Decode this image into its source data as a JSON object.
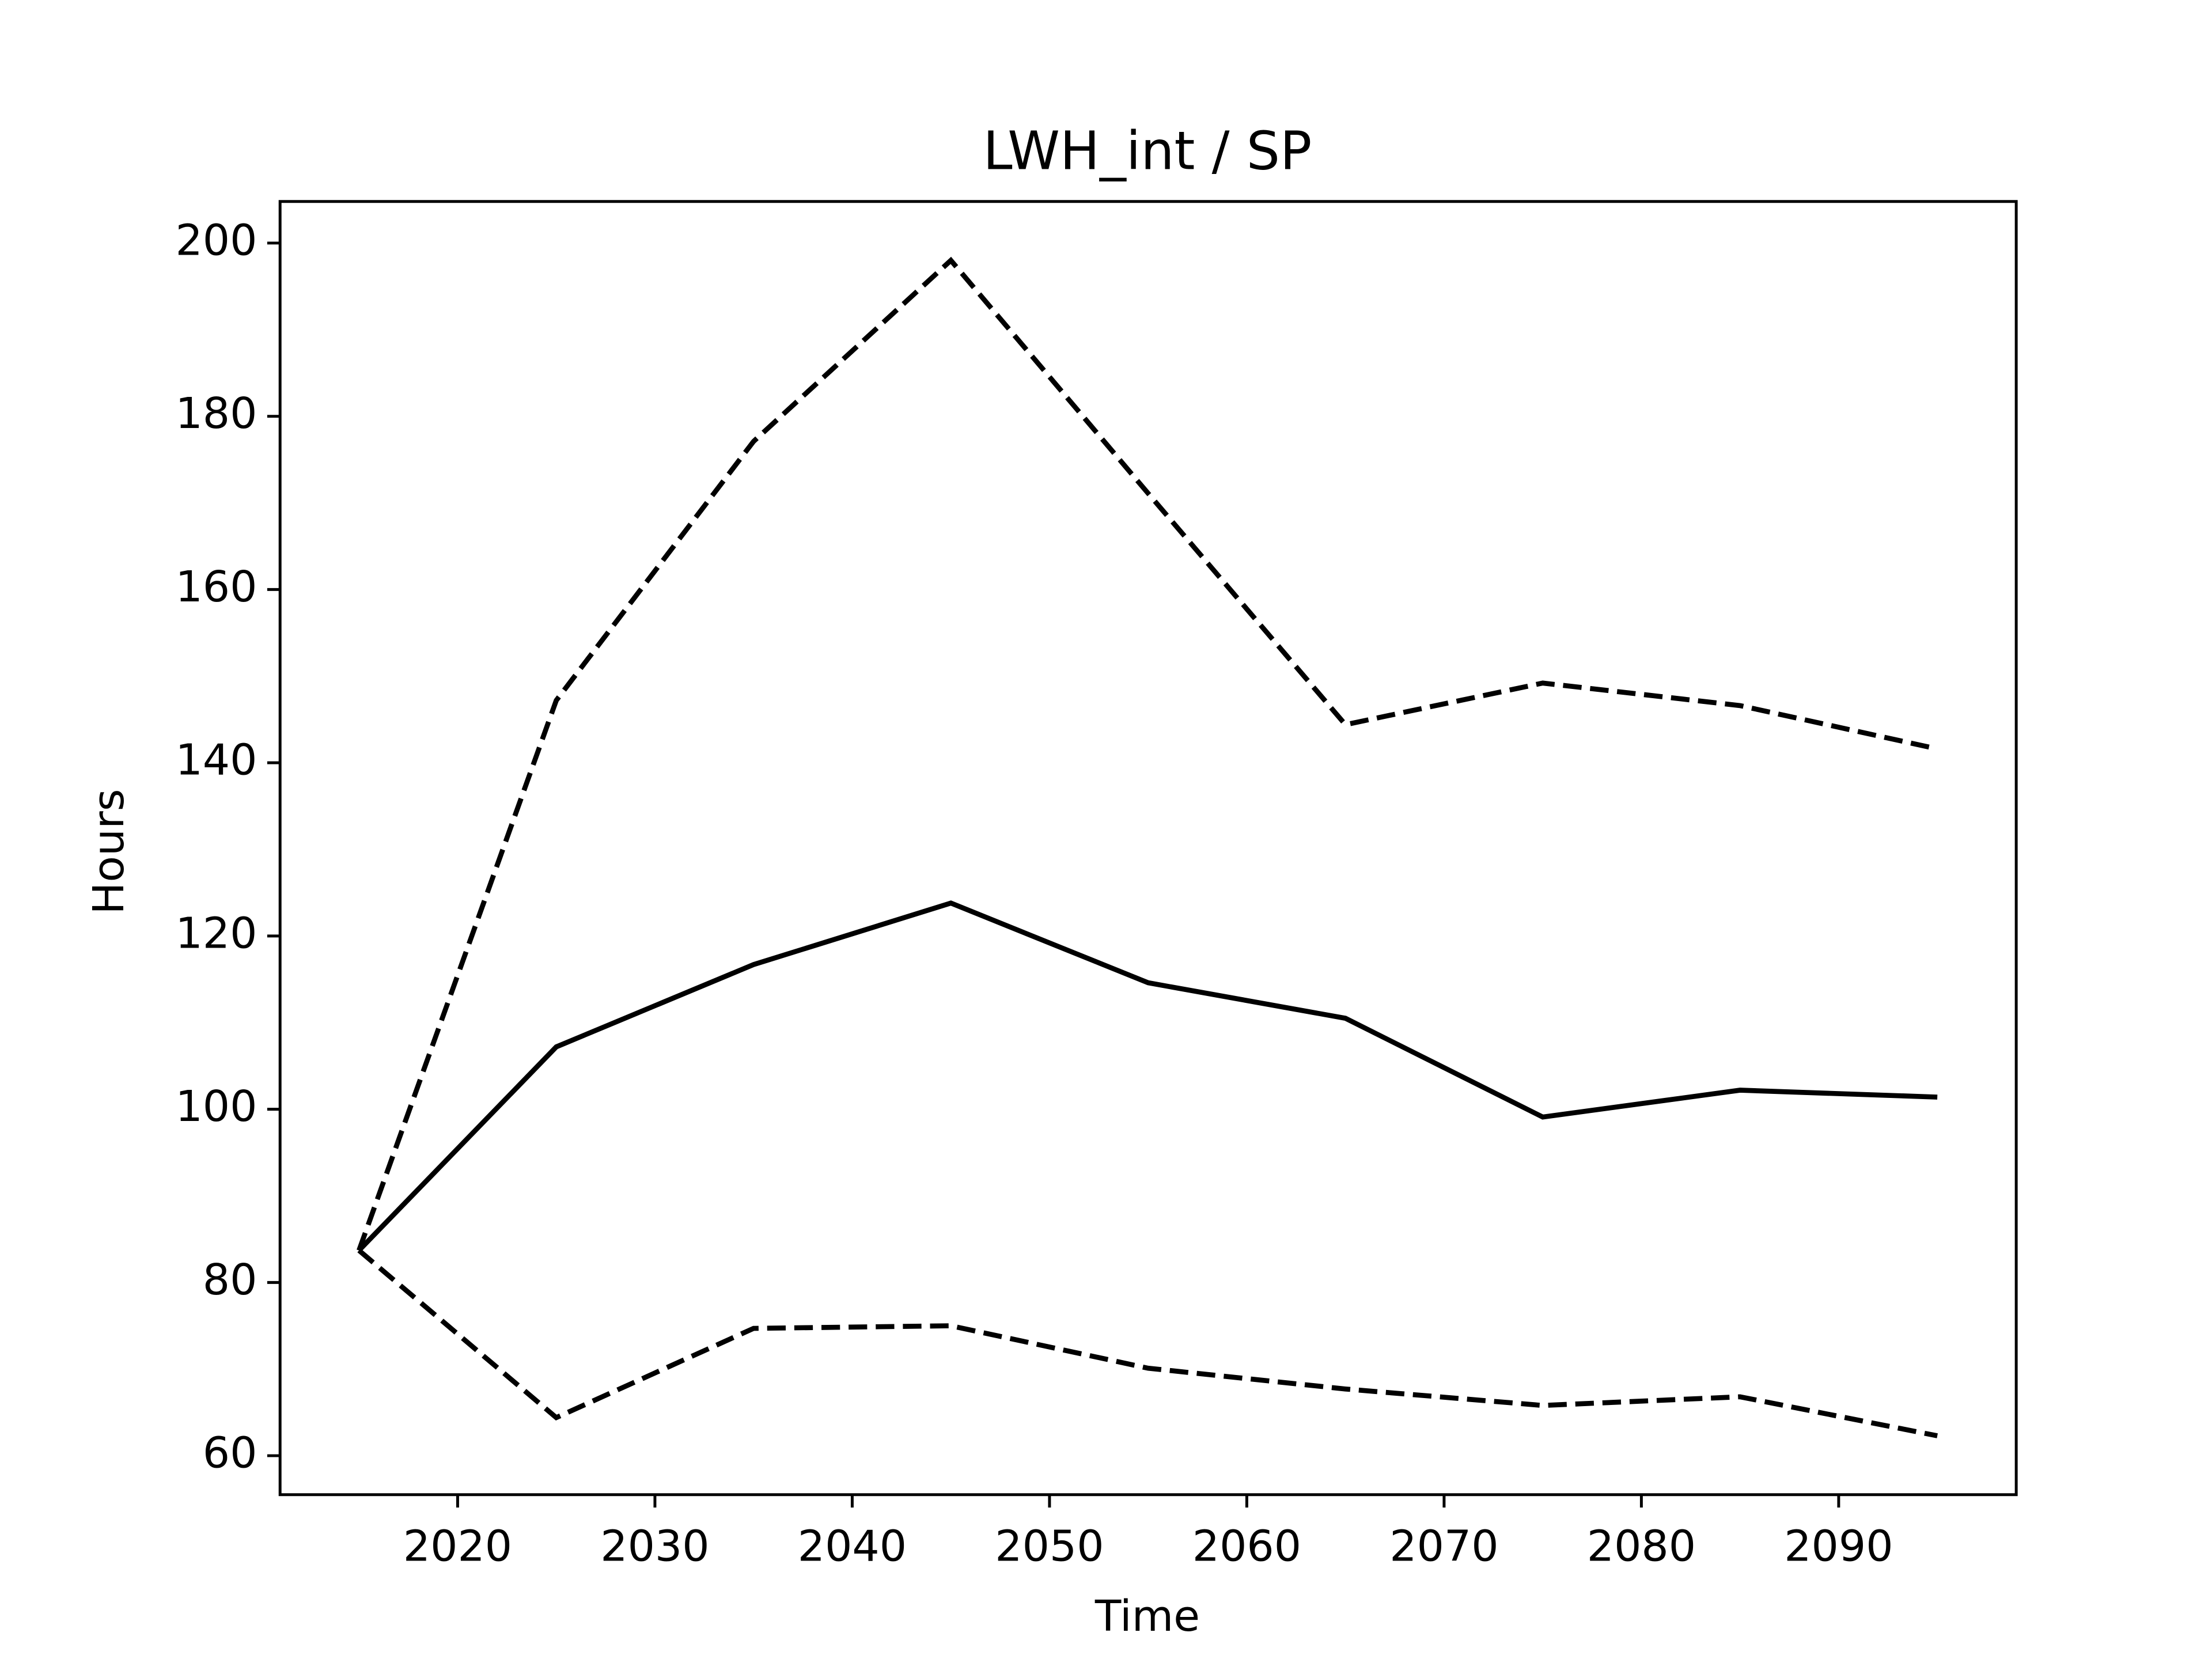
{
  "chart_data": {
    "type": "line",
    "title": "LWH_int / SP",
    "xlabel": "Time",
    "ylabel": "Hours",
    "x": [
      2015,
      2025,
      2035,
      2045,
      2055,
      2065,
      2075,
      2085,
      2095
    ],
    "series": [
      {
        "color": "#000000",
        "dash": "solid",
        "values": [
          83.7,
          107.2,
          116.7,
          123.8,
          114.6,
          110.5,
          99.1,
          102.2,
          101.4
        ]
      },
      {
        "color": "#000000",
        "dash": "dashed",
        "values": [
          83.7,
          147.2,
          177.1,
          198.0,
          171.1,
          144.4,
          149.2,
          146.6,
          141.6
        ]
      },
      {
        "color": "#000000",
        "dash": "dashed",
        "values": [
          83.7,
          64.4,
          74.7,
          75.0,
          70.1,
          67.7,
          65.8,
          66.8,
          62.3
        ]
      }
    ],
    "xlim": [
      2011,
      2099
    ],
    "xticks": [
      2020,
      2030,
      2040,
      2050,
      2060,
      2070,
      2080,
      2090
    ],
    "ylim": [
      55.5,
      204.8
    ],
    "yticks": [
      60,
      80,
      100,
      120,
      140,
      160,
      180,
      200
    ],
    "grid": false
  }
}
